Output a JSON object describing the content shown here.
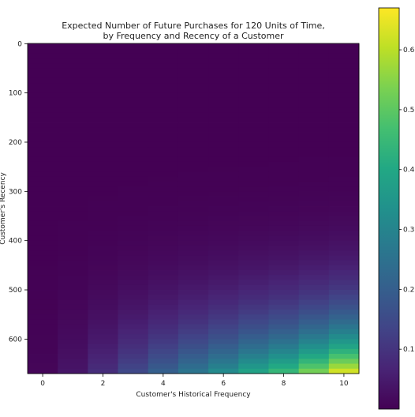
{
  "chart_data": {
    "type": "heatmap",
    "title": "Expected Number of Future Purchases for 120 Units of Time,",
    "subtitle": "by Frequency and Recency of a Customer",
    "xlabel": "Customer's Historical Frequency",
    "ylabel": "Customer's Recency",
    "x_ticks": [
      "0",
      "2",
      "4",
      "6",
      "8",
      "10"
    ],
    "y_ticks": [
      "0",
      "100",
      "200",
      "300",
      "400",
      "500",
      "600"
    ],
    "colorbar_ticks": [
      "0.1",
      "0.2",
      "0.3",
      "0.4",
      "0.5",
      "0.6"
    ],
    "colormap": "viridis",
    "x": [
      0,
      1,
      2,
      3,
      4,
      5,
      6,
      7,
      8,
      9,
      10
    ],
    "xlim": [
      -0.5,
      10.5
    ],
    "ylim": [
      670,
      -0.5
    ],
    "color_range": [
      0.0,
      0.67
    ],
    "max_recency": 670,
    "approx_values_at_max_recency": [
      0.01,
      0.04,
      0.09,
      0.15,
      0.21,
      0.27,
      0.33,
      0.4,
      0.46,
      0.55,
      0.65
    ],
    "grid": false,
    "colorbar": "right"
  }
}
